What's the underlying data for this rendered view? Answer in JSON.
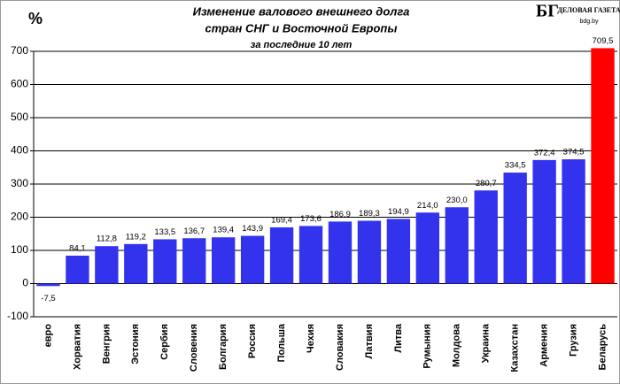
{
  "chart_data": {
    "type": "bar",
    "title": [
      "Изменение валового внешнего долга",
      "стран СНГ и Восточной Европы",
      "за последние  10 лет"
    ],
    "y_label": "%",
    "logo": {
      "mark": "БГ",
      "name": "ДЕЛОВАЯ ГАЗЕТА",
      "site": "bdg.by"
    },
    "categories": [
      "евро",
      "Хорватия",
      "Венгрия",
      "Эстония",
      "Сербия",
      "Словения",
      "Болгария",
      "Россия",
      "Польша",
      "Чехия",
      "Словакия",
      "Латвия",
      "Литва",
      "Румыния",
      "Молдова",
      "Украина",
      "Казахстан",
      "Армения",
      "Грузия",
      "Беларусь"
    ],
    "values": [
      -7.5,
      84.1,
      112.8,
      119.2,
      133.5,
      136.7,
      139.4,
      143.9,
      169.4,
      173.6,
      186.9,
      189.3,
      194.9,
      214.0,
      230.0,
      280.7,
      334.5,
      372.4,
      374.5,
      709.5
    ],
    "value_labels": [
      "-7,5",
      "84,1",
      "112,8",
      "119,2",
      "133,5",
      "136,7",
      "139,4",
      "143,9",
      "169,4",
      "173,6",
      "186,9",
      "189,3",
      "194,9",
      "214,0",
      "230,0",
      "280,7",
      "334,5",
      "372,4",
      "374,5",
      "709,5"
    ],
    "colors": [
      "#3333ee",
      "#3333ee",
      "#3333ee",
      "#3333ee",
      "#3333ee",
      "#3333ee",
      "#3333ee",
      "#3333ee",
      "#3333ee",
      "#3333ee",
      "#3333ee",
      "#3333ee",
      "#3333ee",
      "#3333ee",
      "#3333ee",
      "#3333ee",
      "#3333ee",
      "#3333ee",
      "#3333ee",
      "#ff0000"
    ],
    "ylim": [
      -100,
      700
    ],
    "yticks": [
      -100,
      0,
      100,
      200,
      300,
      400,
      500,
      600,
      700
    ],
    "grid": true
  }
}
